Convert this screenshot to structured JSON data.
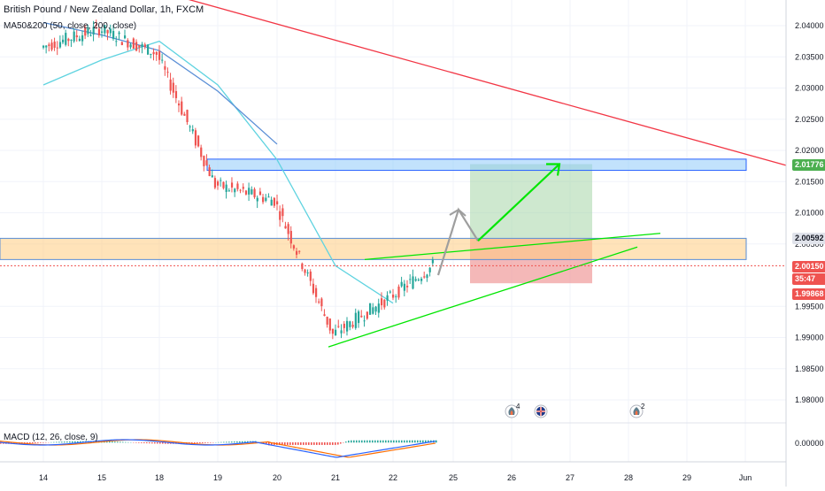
{
  "header": {
    "symbol_title": "British Pound / New Zealand Dollar, 1h, FXCM",
    "indicator_label": "MA50&200 (50, close, 200, close)"
  },
  "macd": {
    "label": "MACD (12, 26, close, 9)",
    "zero_label": "0.00000",
    "colors": {
      "macd": "#2962ff",
      "signal": "#ff6d00",
      "hist_up": "#26a69a",
      "hist_down": "#ef5350"
    }
  },
  "price_axis": {
    "ticks": [
      "2.04000",
      "2.03500",
      "2.03000",
      "2.02500",
      "2.02000",
      "2.01500",
      "2.01000",
      "2.00500",
      "1.99500",
      "1.99000",
      "1.98500",
      "1.98000"
    ],
    "tags": [
      {
        "value": "2.01776",
        "color": "#4caf50",
        "text_color": "#ffffff"
      },
      {
        "value": "2.00592",
        "color": "#e0e3eb",
        "text_color": "#131722"
      },
      {
        "value": "2.00150",
        "color": "#ef5350",
        "text_color": "#ffffff"
      },
      {
        "value": "35:47",
        "color": "#ef5350",
        "text_color": "#ffffff"
      },
      {
        "value": "1.99868",
        "color": "#ef5350",
        "text_color": "#ffffff"
      }
    ]
  },
  "time_axis": {
    "ticks": [
      "14",
      "15",
      "18",
      "19",
      "20",
      "21",
      "22",
      "25",
      "26",
      "27",
      "28",
      "29",
      "Jun"
    ]
  },
  "events": [
    {
      "icon": "fire-icon",
      "badge": "4"
    },
    {
      "icon": "uk-flag-icon",
      "badge": ""
    },
    {
      "icon": "fire-icon",
      "badge": "2"
    }
  ],
  "chart_data": {
    "type": "candlestick",
    "title": "British Pound / New Zealand Dollar, 1h, FXCM",
    "ylim": [
      1.976,
      2.044
    ],
    "x_ticks": [
      "14",
      "15",
      "18",
      "19",
      "20",
      "21",
      "22",
      "25",
      "26",
      "27",
      "28",
      "29",
      "Jun"
    ],
    "colors": {
      "up": "#26a69a",
      "down": "#ef5350",
      "ma50": "#5fd3e0",
      "ma200": "#5b8fd6"
    },
    "anchors": [
      {
        "x": "14",
        "y": 2.0365
      },
      {
        "x": "15",
        "y": 2.0395
      },
      {
        "x": "18",
        "y": 2.0355
      },
      {
        "x": "19",
        "y": 2.0145
      },
      {
        "x": "20",
        "y": 2.012
      },
      {
        "x": "21",
        "y": 1.9905
      },
      {
        "x": "22",
        "y": 1.9965
      },
      {
        "x": "22",
        "y": 2.0015
      }
    ],
    "ma50": [
      {
        "x": "14",
        "y": 2.0305
      },
      {
        "x": "15",
        "y": 2.0345
      },
      {
        "x": "18",
        "y": 2.0375
      },
      {
        "x": "19",
        "y": 2.0305
      },
      {
        "x": "20",
        "y": 2.0185
      },
      {
        "x": "21",
        "y": 2.0015
      },
      {
        "x": "22",
        "y": 1.9955
      }
    ],
    "ma200": [
      {
        "x": "14",
        "y": 2.0405
      },
      {
        "x": "15",
        "y": 2.0385
      },
      {
        "x": "18",
        "y": 2.036
      },
      {
        "x": "19",
        "y": 2.0295
      },
      {
        "x": "20",
        "y": 2.021
      }
    ],
    "drawings": {
      "resistance_trendline": {
        "color": "#f23645",
        "from": 2.0455,
        "to": 2.0176
      },
      "upper_zone": [
        2.0168,
        2.0186
      ],
      "lower_zone": [
        2.0025,
        2.0059
      ],
      "support_trendline": {
        "color": "#00e600",
        "from": 1.9885,
        "to": 2.0045
      },
      "triangle_top_line": {
        "color": "#00e600",
        "from": 2.0025,
        "to": 2.0067
      },
      "target_box": {
        "top": 2.0178,
        "bottom": 2.0059,
        "color": "#a5d6a7"
      },
      "stop_box": {
        "top": 2.0059,
        "bottom": 1.9987,
        "color": "#ef9a9a"
      },
      "projection_grey": [
        2.0,
        2.0105,
        2.0055
      ],
      "projection_green": [
        2.0055,
        2.0178
      ],
      "current_price": 2.0015
    }
  }
}
